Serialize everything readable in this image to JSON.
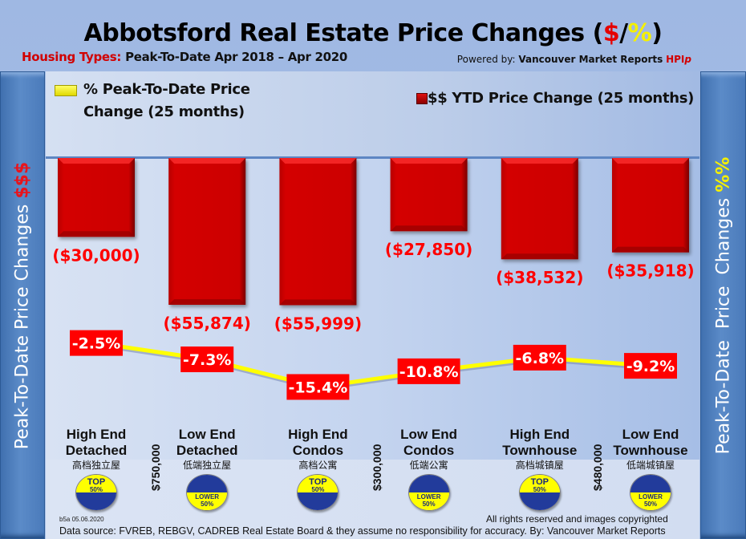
{
  "header": {
    "title_main": "Abbotsford Real Estate Price Changes (",
    "title_dollar": "$",
    "title_slash": "/",
    "title_pct": "%",
    "title_close": ")",
    "subtitle_label": "Housing Types:",
    "subtitle_value": "Peak-To-Date Apr 2018 – Apr 2020",
    "powered_prefix": "Powered by:",
    "powered_brand": "Vancouver Market Reports",
    "powered_hpi": "HPI",
    "powered_hpi_p": "p"
  },
  "side_left": {
    "text": "Peak-To-Date Price Changes",
    "accent": "$$$"
  },
  "side_right": {
    "text": "Peak-To-Date  Price  Changes",
    "accent": "%%"
  },
  "legend": {
    "pct_label_line1": "% Peak-To-Date Price",
    "pct_label_line2": "Change (25 months)",
    "dollar_label": "$$ YTD Price Change (25 months)"
  },
  "categories": [
    {
      "en1": "High End",
      "en2": "Detached",
      "zh": "高档独立屋",
      "badge": "top"
    },
    {
      "en1": "Low End",
      "en2": "Detached",
      "zh": "低端独立屋",
      "badge": "lower"
    },
    {
      "en1": "High End",
      "en2": "Condos",
      "zh": "高档公寓",
      "badge": "top"
    },
    {
      "en1": "Low End",
      "en2": "Condos",
      "zh": "低端公寓",
      "badge": "lower"
    },
    {
      "en1": "High End",
      "en2": "Townhouse",
      "zh": "高档城镇屋",
      "badge": "top"
    },
    {
      "en1": "Low End",
      "en2": "Townhouse",
      "zh": "低端城镇屋",
      "badge": "lower"
    }
  ],
  "badges": {
    "top_line1": "TOP",
    "top_line2": "50%",
    "lower_line1": "LOWER",
    "lower_line2": "50%"
  },
  "thresholds": [
    "$750,000",
    "$300,000",
    "$480,000"
  ],
  "footer": {
    "code": "b5a 05.06.2020",
    "rights": "All rights reserved and  images copyrighted",
    "source": "Data source: FVREB, REBGV, CADREB Real Estate Board & they assume no responsibility for accuracy. By: Vancouver Market Reports"
  },
  "colors": {
    "bar": "#cc0000",
    "line": "#ffff00",
    "pct_label_bg": "#ff0000",
    "dollar_label": "#ff0000"
  },
  "chart_data": {
    "type": "bar",
    "title": "Abbotsford Real Estate Price Changes ($/%)",
    "subtitle": "Housing Types: Peak-To-Date Apr 2018 – Apr 2020",
    "categories": [
      "High End Detached",
      "Low End Detached",
      "High End Condos",
      "Low End Condos",
      "High End Townhouse",
      "Low End Townhouse"
    ],
    "series": [
      {
        "name": "$$ YTD Price Change (25 months)",
        "type": "bar",
        "values": [
          -30000,
          -55874,
          -55999,
          -27850,
          -38532,
          -35918
        ],
        "labels": [
          "($30,000)",
          "($55,874)",
          "($55,999)",
          "($27,850)",
          "($38,532)",
          "($35,918)"
        ]
      },
      {
        "name": "% Peak-To-Date Price Change (25 months)",
        "type": "line",
        "values": [
          -2.5,
          -7.3,
          -15.4,
          -10.8,
          -6.8,
          -9.2
        ],
        "labels": [
          "-2.5%",
          "-7.3%",
          "-15.4%",
          "-10.8%",
          "-6.8%",
          "-9.2%"
        ]
      }
    ],
    "xlabel": "",
    "ylabel_left": "Peak-To-Date Price Changes $$$",
    "ylabel_right": "Peak-To-Date Price Changes %%",
    "grid": false,
    "legend": "top"
  }
}
